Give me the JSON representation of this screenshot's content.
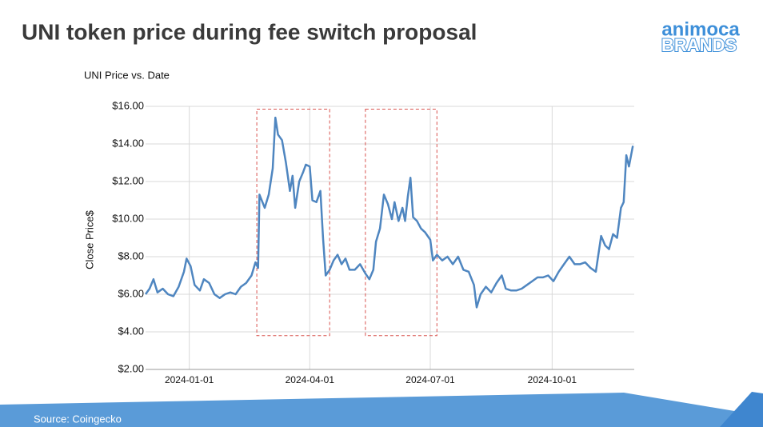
{
  "title": "UNI token price during fee switch proposal",
  "logo": {
    "top": "animoca",
    "bottom": "BRANDS"
  },
  "source": "Source: Coingecko",
  "chart_data": {
    "type": "line",
    "title": "UNI Price vs. Date",
    "y_label": "Close Price$",
    "x": [
      "2023-11-29",
      "2023-12-02",
      "2023-12-05",
      "2023-12-08",
      "2023-12-12",
      "2023-12-16",
      "2023-12-20",
      "2023-12-24",
      "2023-12-28",
      "2023-12-30",
      "2024-01-02",
      "2024-01-05",
      "2024-01-09",
      "2024-01-12",
      "2024-01-16",
      "2024-01-20",
      "2024-01-24",
      "2024-01-28",
      "2024-02-01",
      "2024-02-05",
      "2024-02-09",
      "2024-02-13",
      "2024-02-17",
      "2024-02-20",
      "2024-02-22",
      "2024-02-23",
      "2024-02-27",
      "2024-03-01",
      "2024-03-04",
      "2024-03-06",
      "2024-03-08",
      "2024-03-11",
      "2024-03-14",
      "2024-03-17",
      "2024-03-19",
      "2024-03-21",
      "2024-03-24",
      "2024-03-27",
      "2024-03-29",
      "2024-04-01",
      "2024-04-03",
      "2024-04-06",
      "2024-04-09",
      "2024-04-11",
      "2024-04-13",
      "2024-04-16",
      "2024-04-19",
      "2024-04-22",
      "2024-04-25",
      "2024-04-28",
      "2024-05-01",
      "2024-05-05",
      "2024-05-09",
      "2024-05-13",
      "2024-05-16",
      "2024-05-19",
      "2024-05-21",
      "2024-05-24",
      "2024-05-27",
      "2024-05-30",
      "2024-06-02",
      "2024-06-04",
      "2024-06-07",
      "2024-06-10",
      "2024-06-12",
      "2024-06-14",
      "2024-06-16",
      "2024-06-18",
      "2024-06-21",
      "2024-06-24",
      "2024-06-27",
      "2024-07-01",
      "2024-07-03",
      "2024-07-06",
      "2024-07-10",
      "2024-07-14",
      "2024-07-18",
      "2024-07-22",
      "2024-07-26",
      "2024-07-30",
      "2024-08-03",
      "2024-08-05",
      "2024-08-08",
      "2024-08-12",
      "2024-08-16",
      "2024-08-20",
      "2024-08-24",
      "2024-08-27",
      "2024-08-31",
      "2024-09-04",
      "2024-09-08",
      "2024-09-12",
      "2024-09-16",
      "2024-09-20",
      "2024-09-24",
      "2024-09-28",
      "2024-10-02",
      "2024-10-06",
      "2024-10-10",
      "2024-10-14",
      "2024-10-18",
      "2024-10-22",
      "2024-10-26",
      "2024-10-30",
      "2024-11-03",
      "2024-11-07",
      "2024-11-10",
      "2024-11-13",
      "2024-11-16",
      "2024-11-19",
      "2024-11-22",
      "2024-11-24",
      "2024-11-26",
      "2024-11-28",
      "2024-12-01"
    ],
    "series": [
      {
        "name": "UNI",
        "color": "#4f86c0",
        "values": [
          6.0,
          6.3,
          6.8,
          6.1,
          6.3,
          6.0,
          5.9,
          6.4,
          7.2,
          7.9,
          7.5,
          6.5,
          6.2,
          6.8,
          6.6,
          6.0,
          5.8,
          6.0,
          6.1,
          6.0,
          6.4,
          6.6,
          7.0,
          7.7,
          7.4,
          11.3,
          10.6,
          11.3,
          12.7,
          15.4,
          14.5,
          14.2,
          13.0,
          11.5,
          12.3,
          10.6,
          12.0,
          12.5,
          12.9,
          12.8,
          11.0,
          10.9,
          11.5,
          9.0,
          7.0,
          7.3,
          7.8,
          8.1,
          7.6,
          7.9,
          7.3,
          7.3,
          7.6,
          7.1,
          6.8,
          7.3,
          8.8,
          9.5,
          11.3,
          10.8,
          10.0,
          10.9,
          9.9,
          10.6,
          9.9,
          11.2,
          12.2,
          10.1,
          9.9,
          9.5,
          9.3,
          8.9,
          7.8,
          8.1,
          7.8,
          8.0,
          7.6,
          8.0,
          7.3,
          7.2,
          6.5,
          5.3,
          6.0,
          6.4,
          6.1,
          6.6,
          7.0,
          6.3,
          6.2,
          6.2,
          6.3,
          6.5,
          6.7,
          6.9,
          6.9,
          7.0,
          6.7,
          7.2,
          7.6,
          8.0,
          7.6,
          7.6,
          7.7,
          7.4,
          7.2,
          9.1,
          8.6,
          8.4,
          9.2,
          9.0,
          10.6,
          10.9,
          13.4,
          12.8,
          13.9
        ]
      }
    ],
    "xlim": [
      "2023-11-29",
      "2024-12-02"
    ],
    "xticks": [
      "2024-01-01",
      "2024-04-01",
      "2024-07-01",
      "2024-10-01"
    ],
    "ylim": [
      2,
      16
    ],
    "yticks": [
      {
        "value": 2,
        "label": "$2.00"
      },
      {
        "value": 4,
        "label": "$4.00"
      },
      {
        "value": 6,
        "label": "$6.00"
      },
      {
        "value": 8,
        "label": "$8.00"
      },
      {
        "value": 10,
        "label": "$10.00"
      },
      {
        "value": 12,
        "label": "$12.00"
      },
      {
        "value": 14,
        "label": "$14.00"
      },
      {
        "value": 16,
        "label": "$16.00"
      }
    ],
    "grid": true,
    "highlights": [
      {
        "x": [
          "2024-02-21",
          "2024-04-16"
        ],
        "y": [
          3.8,
          15.85
        ],
        "color": "#d9534f"
      },
      {
        "x": [
          "2024-05-13",
          "2024-07-06"
        ],
        "y": [
          3.8,
          15.85
        ],
        "color": "#d9534f"
      }
    ]
  }
}
